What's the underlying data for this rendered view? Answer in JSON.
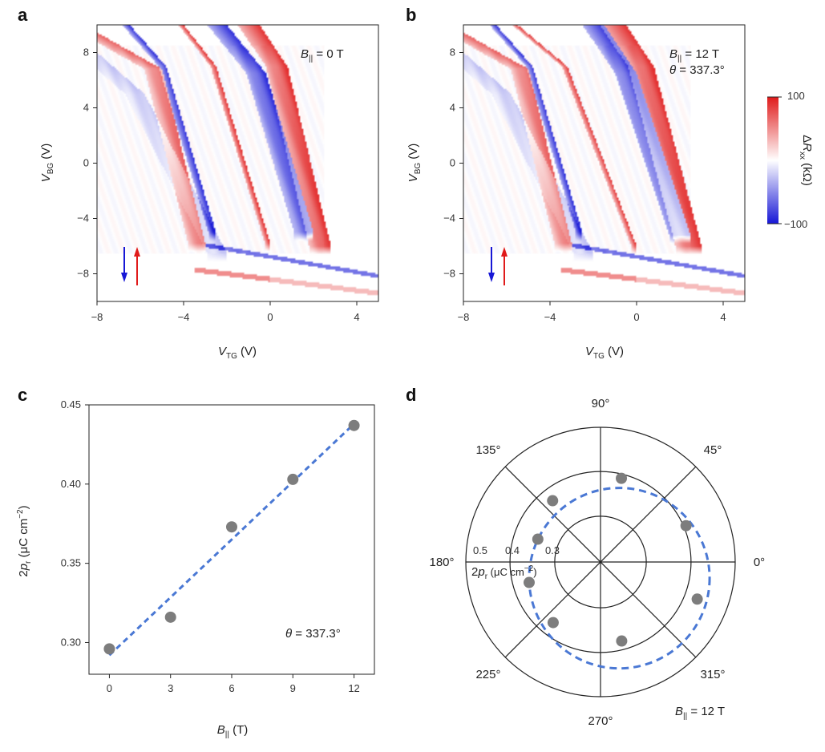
{
  "figure": {
    "panel_labels": [
      "a",
      "b",
      "c",
      "d"
    ],
    "colors": {
      "red": "#e01b1b",
      "blue": "#1717d6",
      "fit": "#4a78d4",
      "marker": "#7d7d7d",
      "ink": "#222222"
    }
  },
  "chart_data": [
    {
      "id": "a",
      "type": "heatmap",
      "title": "",
      "xlabel": {
        "main": "V",
        "sub": "TG",
        "unit": " (V)"
      },
      "ylabel": {
        "main": "V",
        "sub": "BG",
        "unit": " (V)"
      },
      "xlim": [
        -8,
        5
      ],
      "ylim": [
        -10,
        10
      ],
      "xticks": [
        -8,
        -4,
        0,
        4
      ],
      "yticks": [
        -8,
        -4,
        0,
        4,
        8
      ],
      "annotations": [
        {
          "main": "B",
          "sub": "||",
          "rest": " = 0 T"
        }
      ],
      "sweep_arrows": [
        "down",
        "up"
      ],
      "colormap": "diverging blue-white-red",
      "stripes": [
        {
          "sign": -1,
          "top": [
            -8,
            8
          ],
          "knee": [
            -5.8,
            5.0
          ],
          "bottom": [
            -2.0,
            -6.5
          ],
          "width": 0.9,
          "strength": 0.25
        },
        {
          "sign": 1,
          "top": [
            -7.5,
            9.0
          ],
          "knee": [
            -5.0,
            6.8
          ],
          "bottom": [
            -3.0,
            -5.8
          ],
          "width": 0.8,
          "strength": 0.7
        },
        {
          "sign": -1,
          "top": [
            -6.5,
            10
          ],
          "knee": [
            -4.8,
            7.0
          ],
          "bottom": [
            -2.5,
            -5.0
          ],
          "width": 0.35,
          "strength": 0.9
        },
        {
          "sign": 1,
          "top": [
            -4.0,
            10
          ],
          "knee": [
            -2.5,
            7.0
          ],
          "bottom": [
            0.0,
            -5.8
          ],
          "width": 0.25,
          "strength": 0.9
        },
        {
          "sign": -1,
          "top": [
            -2.0,
            10
          ],
          "knee": [
            -0.2,
            6.5
          ],
          "bottom": [
            2.0,
            -5.0
          ],
          "width": 0.9,
          "strength": 0.9
        },
        {
          "sign": 1,
          "top": [
            -0.5,
            10
          ],
          "knee": [
            0.8,
            7.0
          ],
          "bottom": [
            2.8,
            -6.0
          ],
          "width": 1.0,
          "strength": 0.9
        }
      ]
    },
    {
      "id": "b",
      "type": "heatmap",
      "title": "",
      "xlabel": {
        "main": "V",
        "sub": "TG",
        "unit": " (V)"
      },
      "ylabel": {
        "main": "V",
        "sub": "BG",
        "unit": " (V)"
      },
      "xlim": [
        -8,
        5
      ],
      "ylim": [
        -10,
        10
      ],
      "xticks": [
        -8,
        -4,
        0,
        4
      ],
      "yticks": [
        -8,
        -4,
        0,
        4,
        8
      ],
      "annotations": [
        {
          "main": "B",
          "sub": "||",
          "rest": " = 12 T"
        },
        {
          "main": "θ",
          "sub": "",
          "rest": " = 337.3°"
        }
      ],
      "sweep_arrows": [
        "down",
        "up"
      ],
      "colormap": "diverging blue-white-red",
      "colorbar": {
        "label_main": "ΔR",
        "label_sub": "xx",
        "label_unit": " (kΩ)",
        "min": -100,
        "max": 100,
        "ticks": [
          100,
          -100
        ],
        "tick_labels": [
          "100",
          "−100"
        ]
      },
      "stripes": [
        {
          "sign": -1,
          "top": [
            -8,
            8
          ],
          "knee": [
            -5.8,
            5.0
          ],
          "bottom": [
            -2.0,
            -6.5
          ],
          "width": 0.9,
          "strength": 0.25
        },
        {
          "sign": 1,
          "top": [
            -7.5,
            9.0
          ],
          "knee": [
            -5.0,
            6.8
          ],
          "bottom": [
            -3.0,
            -5.8
          ],
          "width": 0.8,
          "strength": 0.7
        },
        {
          "sign": -1,
          "top": [
            -6.5,
            10
          ],
          "knee": [
            -4.8,
            7.0
          ],
          "bottom": [
            -2.5,
            -5.0
          ],
          "width": 0.3,
          "strength": 0.9
        },
        {
          "sign": 1,
          "top": [
            -5.5,
            10
          ],
          "knee": [
            -3.2,
            7.0
          ],
          "bottom": [
            0.0,
            -6.0
          ],
          "width": 0.25,
          "strength": 0.9
        },
        {
          "sign": -1,
          "top": [
            -1.5,
            10
          ],
          "knee": [
            0.0,
            6.5
          ],
          "bottom": [
            2.5,
            -5.2
          ],
          "width": 1.0,
          "strength": 0.95
        },
        {
          "sign": 1,
          "top": [
            -0.5,
            10
          ],
          "knee": [
            0.8,
            7.0
          ],
          "bottom": [
            3.0,
            -6.0
          ],
          "width": 1.2,
          "strength": 0.9
        }
      ]
    },
    {
      "id": "c",
      "type": "scatter",
      "title": "",
      "xlabel": {
        "main": "B",
        "sub": "||",
        "unit": " (T)"
      },
      "ylabel": {
        "pre": "2",
        "main": "p",
        "sub": "r",
        "unit": " (μC cm",
        "sup": "−2",
        "post": ")"
      },
      "xlim": [
        -1,
        13
      ],
      "ylim": [
        0.28,
        0.45
      ],
      "xticks": [
        0,
        3,
        6,
        9,
        12
      ],
      "yticks": [
        0.3,
        0.35,
        0.4,
        0.45
      ],
      "ytick_labels": [
        "0.30",
        "0.35",
        "0.40",
        "0.45"
      ],
      "x": [
        0,
        3,
        6,
        9,
        12
      ],
      "y": [
        0.296,
        0.316,
        0.373,
        0.403,
        0.437
      ],
      "fit": {
        "x": [
          0,
          12
        ],
        "y": [
          0.292,
          0.438
        ]
      },
      "annotation": {
        "main": "θ",
        "rest": " = 337.3°"
      }
    },
    {
      "id": "d",
      "type": "scatter",
      "projection": "polar",
      "title": "",
      "angle_labels": [
        "0°",
        "45°",
        "90°",
        "135°",
        "180°",
        "225°",
        "270°",
        "315°"
      ],
      "radial_labels": [
        "0.5",
        "0.4",
        "0.3"
      ],
      "radial_axis_label": {
        "pre": "2",
        "main": "p",
        "sub": "r",
        "unit": " (μC cm",
        "sup": "−2",
        "post": ")"
      },
      "points": [
        {
          "angle": 23,
          "r": 0.406
        },
        {
          "angle": 76,
          "r": 0.391
        },
        {
          "angle": 128,
          "r": 0.372
        },
        {
          "angle": 160,
          "r": 0.347
        },
        {
          "angle": 196,
          "r": 0.364
        },
        {
          "angle": 232,
          "r": 0.37
        },
        {
          "angle": 285,
          "r": 0.381
        },
        {
          "angle": 339,
          "r": 0.43
        }
      ],
      "fit_curve": "dashed circle, offset toward 337.3°",
      "fit": {
        "cx_frac": 0.14,
        "cy_frac": -0.12,
        "r_frac": 0.67
      },
      "annotation": {
        "main": "B",
        "sub": "||",
        "rest": " = 12 T"
      }
    }
  ]
}
